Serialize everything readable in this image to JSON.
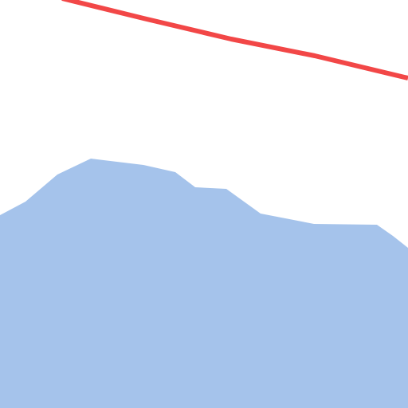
{
  "map": {
    "background_color": "#ffffff",
    "water_color": "#a5c3eb",
    "road_color": "#f24747",
    "layers": [
      "background",
      "water-body",
      "road"
    ]
  }
}
